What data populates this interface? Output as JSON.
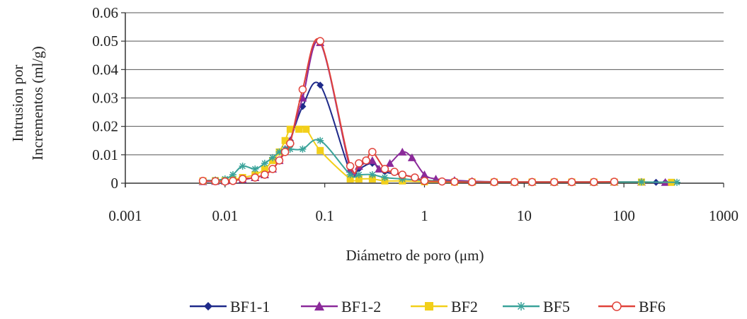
{
  "chart_data": {
    "type": "line",
    "xscale": "log",
    "xlabel": "Diámetro de poro (μm)",
    "ylabel_lines": [
      "Intrusion por",
      "Incrementos (ml/g)"
    ],
    "xlim": [
      0.001,
      1000
    ],
    "ylim": [
      0,
      0.06
    ],
    "xticks": [
      0.001,
      0.01,
      0.1,
      1,
      10,
      100,
      1000
    ],
    "xtick_labels": [
      "0.001",
      "0.01",
      "0.1",
      "1",
      "10",
      "100",
      "1000"
    ],
    "yticks": [
      0,
      0.01,
      0.02,
      0.03,
      0.04,
      0.05,
      0.06
    ],
    "ytick_labels": [
      "0",
      "0.01",
      "0.02",
      "0.03",
      "0.04",
      "0.05",
      "0.06"
    ],
    "grid": "horizontal",
    "legend_position": "bottom",
    "series": [
      {
        "name": "BF1-1",
        "color": "#1f2a8a",
        "marker": "diamond",
        "x": [
          0.006,
          0.008,
          0.01,
          0.012,
          0.015,
          0.02,
          0.025,
          0.03,
          0.035,
          0.04,
          0.045,
          0.06,
          0.09,
          0.18,
          0.22,
          0.3,
          0.4,
          0.6,
          0.8,
          1.0,
          1.5,
          2,
          3,
          5,
          8,
          12,
          20,
          30,
          50,
          80,
          150,
          210,
          260
        ],
        "y": [
          0.0007,
          0.0008,
          0.001,
          0.0012,
          0.0015,
          0.002,
          0.003,
          0.005,
          0.008,
          0.011,
          0.015,
          0.027,
          0.0345,
          0.004,
          0.005,
          0.007,
          0.004,
          0.003,
          0.002,
          0.001,
          0.0008,
          0.0006,
          0.0005,
          0.0004,
          0.0004,
          0.0004,
          0.0004,
          0.0004,
          0.0004,
          0.0004,
          0.0004,
          0.0003,
          0.0003
        ]
      },
      {
        "name": "BF1-2",
        "color": "#8b2a9a",
        "marker": "triangle",
        "x": [
          0.006,
          0.008,
          0.01,
          0.012,
          0.015,
          0.02,
          0.025,
          0.03,
          0.035,
          0.04,
          0.045,
          0.06,
          0.09,
          0.18,
          0.22,
          0.3,
          0.35,
          0.45,
          0.6,
          0.75,
          1.0,
          1.3,
          2,
          3,
          5,
          8,
          12,
          20,
          30,
          50,
          80,
          150,
          260
        ],
        "y": [
          0.0006,
          0.0007,
          0.0008,
          0.001,
          0.0013,
          0.002,
          0.003,
          0.005,
          0.008,
          0.012,
          0.015,
          0.03,
          0.0495,
          0.005,
          0.006,
          0.008,
          0.005,
          0.007,
          0.011,
          0.009,
          0.003,
          0.0015,
          0.001,
          0.0007,
          0.0005,
          0.0004,
          0.0004,
          0.0004,
          0.0004,
          0.0004,
          0.0004,
          0.0004,
          0.0003
        ]
      },
      {
        "name": "BF2",
        "color": "#f2cf1a",
        "marker": "square",
        "x": [
          0.006,
          0.008,
          0.01,
          0.012,
          0.015,
          0.02,
          0.025,
          0.03,
          0.035,
          0.04,
          0.045,
          0.055,
          0.065,
          0.09,
          0.18,
          0.22,
          0.3,
          0.4,
          0.6,
          1.0,
          2,
          3,
          5,
          8,
          12,
          20,
          30,
          50,
          80,
          150,
          300
        ],
        "y": [
          0.0008,
          0.0009,
          0.001,
          0.0013,
          0.002,
          0.003,
          0.005,
          0.008,
          0.011,
          0.015,
          0.019,
          0.019,
          0.019,
          0.0115,
          0.0015,
          0.0015,
          0.0015,
          0.0008,
          0.0008,
          0.0005,
          0.0004,
          0.0004,
          0.0004,
          0.0004,
          0.0004,
          0.0004,
          0.0004,
          0.0004,
          0.0004,
          0.0004,
          0.0003
        ]
      },
      {
        "name": "BF5",
        "color": "#3aa39a",
        "marker": "asterisk",
        "x": [
          0.006,
          0.008,
          0.01,
          0.012,
          0.015,
          0.02,
          0.025,
          0.03,
          0.035,
          0.04,
          0.045,
          0.06,
          0.09,
          0.18,
          0.22,
          0.3,
          0.4,
          0.6,
          1.0,
          2,
          3,
          5,
          8,
          12,
          20,
          30,
          50,
          80,
          150,
          340
        ],
        "y": [
          0.0009,
          0.0011,
          0.0015,
          0.003,
          0.006,
          0.005,
          0.007,
          0.009,
          0.011,
          0.012,
          0.012,
          0.012,
          0.015,
          0.003,
          0.003,
          0.003,
          0.002,
          0.0015,
          0.001,
          0.0006,
          0.0005,
          0.0004,
          0.0004,
          0.0004,
          0.0004,
          0.0004,
          0.0004,
          0.0004,
          0.0004,
          0.0003
        ]
      },
      {
        "name": "BF6",
        "color": "#e0423a",
        "marker": "circle",
        "x": [
          0.006,
          0.008,
          0.01,
          0.012,
          0.015,
          0.02,
          0.025,
          0.03,
          0.035,
          0.04,
          0.045,
          0.06,
          0.09,
          0.18,
          0.22,
          0.26,
          0.3,
          0.4,
          0.5,
          0.6,
          0.8,
          1.0,
          1.5,
          2,
          3,
          5,
          8,
          12,
          20,
          30,
          50,
          80
        ],
        "y": [
          0.0008,
          0.0007,
          0.0006,
          0.0008,
          0.0015,
          0.002,
          0.003,
          0.005,
          0.008,
          0.011,
          0.014,
          0.033,
          0.05,
          0.006,
          0.007,
          0.008,
          0.011,
          0.005,
          0.004,
          0.003,
          0.002,
          0.0008,
          0.0006,
          0.0005,
          0.0004,
          0.0004,
          0.0004,
          0.0004,
          0.0004,
          0.0004,
          0.0004,
          0.0005
        ]
      }
    ]
  }
}
